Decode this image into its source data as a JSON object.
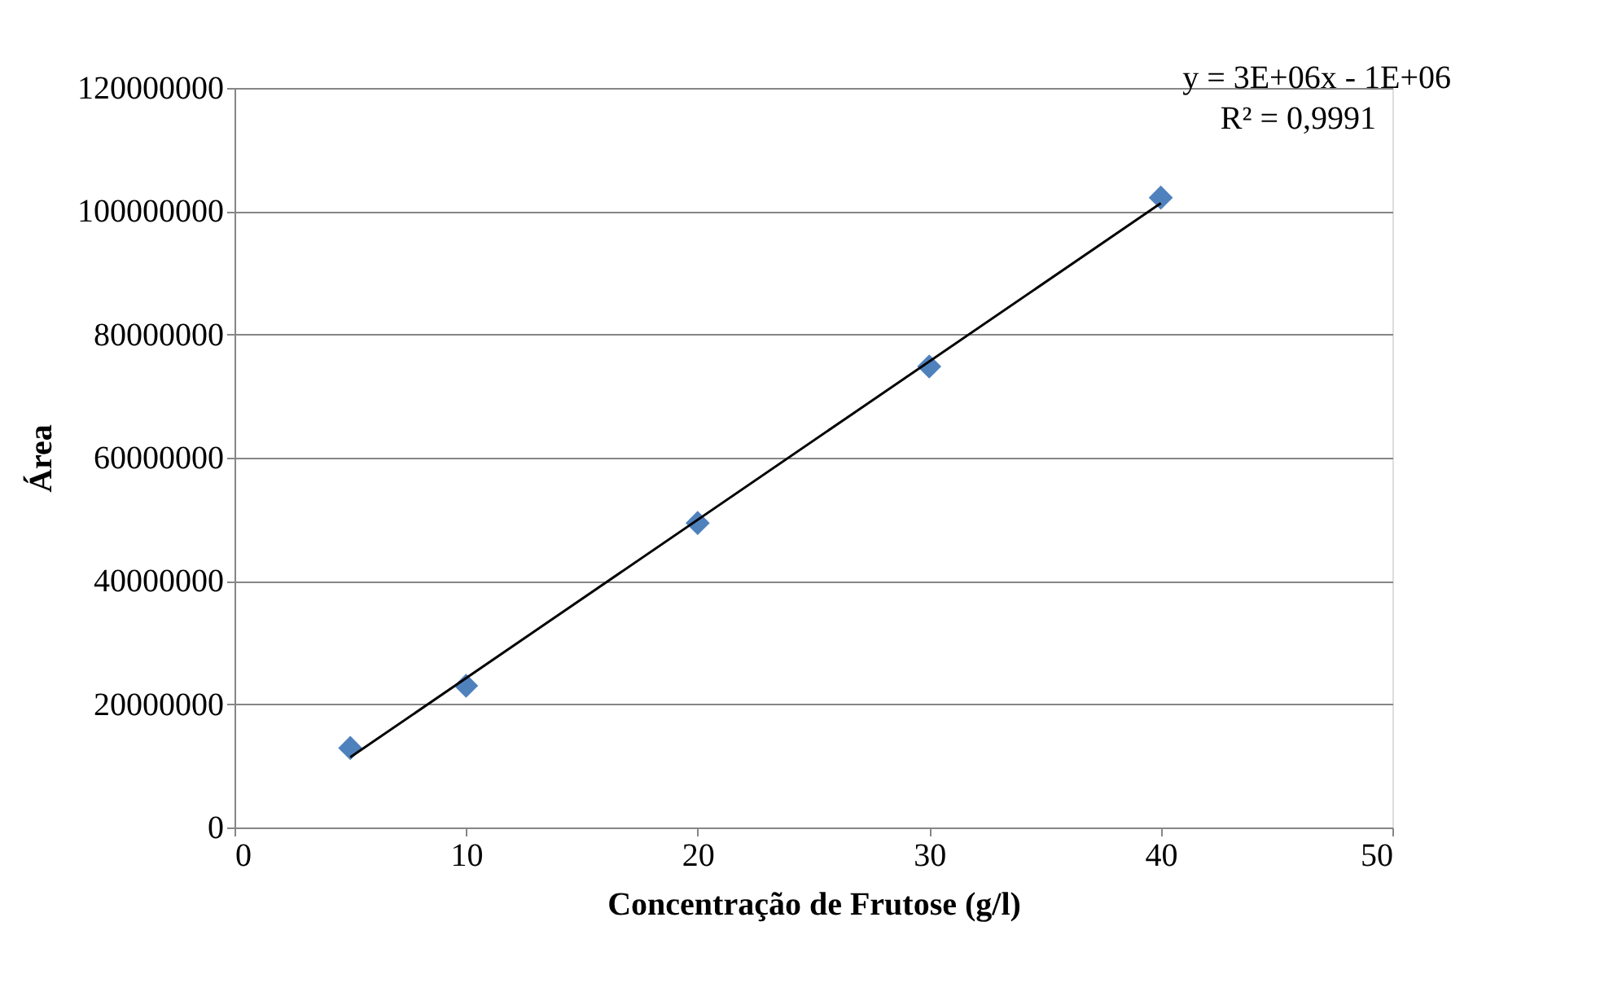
{
  "chart_data": {
    "type": "scatter",
    "xlabel": "Concentração de Frutose (g/l)",
    "ylabel": "Área",
    "annotations": [
      "y = 3E+06x - 1E+06",
      "R² = 0,9991"
    ],
    "series": [
      {
        "color": "#4f81bd",
        "x": [
          5,
          10,
          20,
          30,
          40
        ],
        "values": [
          12900000,
          23000000,
          49400000,
          74800000,
          102200000
        ],
        "marker": "diamond"
      },
      {
        "type": "line",
        "color": "#000000",
        "x": [
          5,
          40
        ],
        "values": [
          11400000,
          101300000
        ],
        "line_style": "solid"
      }
    ],
    "xlim": [
      0,
      50
    ],
    "xticks": [
      0,
      10,
      20,
      30,
      40,
      50
    ],
    "ylim": [
      0,
      120000000
    ],
    "yticks": [
      0,
      20000000,
      40000000,
      60000000,
      80000000,
      100000000,
      120000000
    ],
    "grid": "y"
  }
}
